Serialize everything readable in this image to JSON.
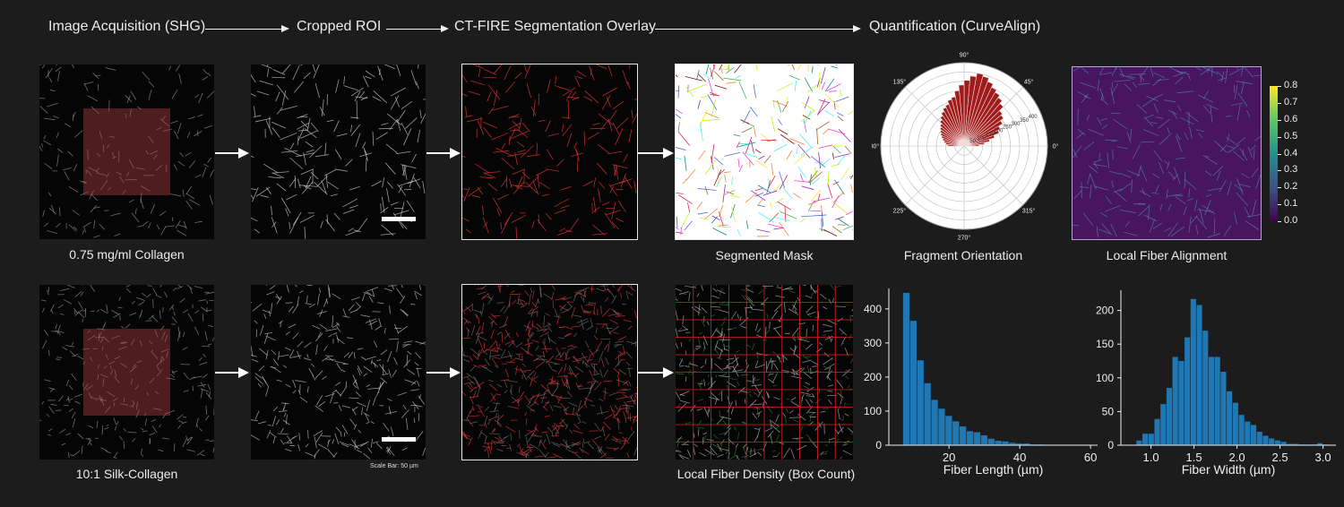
{
  "header": {
    "step1": "Image Acquisition (SHG)",
    "step2": "Cropped ROI",
    "step3": "CT-FIRE Segmentation Overlay",
    "step4": "Quantification (CurveAlign)"
  },
  "row1": {
    "sample_caption": "0.75 mg/ml Collagen",
    "mask_caption": "Segmented Mask",
    "orientation_caption": "Fragment Orientation",
    "alignment_caption": "Local Fiber Alignment"
  },
  "row2": {
    "sample_caption": "10:1 Silk-Collagen",
    "scale_caption": "Scale Bar: 50 µm",
    "density_caption": "Local Fiber Density (Box Count)"
  },
  "polar": {
    "angle_labels": [
      "90°",
      "45°",
      "0°",
      "315°",
      "270°",
      "225°",
      "180°",
      "135°"
    ],
    "radial_labels": [
      "50",
      "100",
      "150",
      "200",
      "250",
      "300",
      "350",
      "400"
    ]
  },
  "colorbar": {
    "ticks": [
      "0.8",
      "0.7",
      "0.6",
      "0.5",
      "0.4",
      "0.3",
      "0.2",
      "0.1",
      "0.0"
    ]
  },
  "colors": {
    "hist_bar": "#1f77b4",
    "overlay_red": "#d93030",
    "roi": "#aa3c3c"
  },
  "chart_data": [
    {
      "type": "bar",
      "xlabel": "Fiber Length (µm)",
      "ylabel": "",
      "xlim": [
        3,
        62
      ],
      "ylim": [
        0,
        460
      ],
      "xticks": [
        "20",
        "40",
        "60"
      ],
      "yticks": [
        "0",
        "100",
        "200",
        "300",
        "400"
      ],
      "bin_width": 2,
      "bin_starts": [
        7,
        9,
        11,
        13,
        15,
        17,
        19,
        21,
        23,
        25,
        27,
        29,
        31,
        33,
        35,
        37,
        39,
        41,
        43,
        45,
        47,
        49,
        51,
        53,
        55,
        57,
        59,
        61
      ],
      "values": [
        447,
        365,
        249,
        182,
        133,
        107,
        86,
        70,
        55,
        41,
        38,
        29,
        19,
        13,
        11,
        7,
        5,
        5,
        2,
        2,
        1,
        1,
        1,
        1,
        0,
        1,
        1,
        1
      ]
    },
    {
      "type": "bar",
      "xlabel": "Fiber Width (µm)",
      "ylabel": "",
      "xlim": [
        0.65,
        3.15
      ],
      "ylim": [
        0,
        230
      ],
      "xticks": [
        "1.0",
        "1.5",
        "2.0",
        "2.5",
        "3.0"
      ],
      "yticks": [
        "0",
        "50",
        "100",
        "150",
        "200"
      ],
      "bin_width": 0.07,
      "bin_starts": [
        0.83,
        0.9,
        0.97,
        1.04,
        1.11,
        1.18,
        1.25,
        1.32,
        1.39,
        1.46,
        1.53,
        1.6,
        1.67,
        1.74,
        1.81,
        1.88,
        1.95,
        2.02,
        2.09,
        2.16,
        2.23,
        2.3,
        2.37,
        2.44,
        2.51,
        2.58,
        2.65,
        2.72,
        2.79,
        2.86,
        2.93,
        3.0
      ],
      "values": [
        7,
        17,
        17,
        39,
        61,
        85,
        131,
        125,
        160,
        217,
        208,
        170,
        131,
        131,
        109,
        80,
        63,
        45,
        35,
        30,
        20,
        14,
        10,
        7,
        5,
        2,
        2,
        1,
        1,
        1,
        3,
        1
      ]
    },
    {
      "type": "bar",
      "polar": true,
      "title": "Fragment Orientation",
      "rlim": [
        0,
        450
      ],
      "theta_range_deg": [
        0,
        180
      ],
      "bin_width_deg": 5,
      "values": [
        80,
        110,
        140,
        170,
        200,
        215,
        240,
        260,
        270,
        300,
        320,
        335,
        350,
        370,
        390,
        400,
        380,
        355,
        330,
        300,
        270,
        260,
        240,
        230,
        215,
        200,
        185,
        170,
        160,
        150,
        140,
        130,
        120,
        110,
        100,
        90
      ]
    }
  ]
}
